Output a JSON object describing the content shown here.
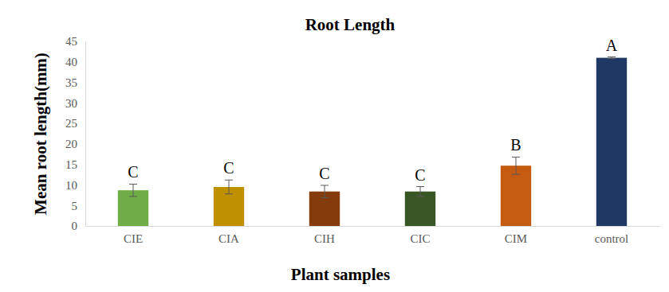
{
  "chart_data": {
    "type": "bar",
    "title": "Root Length",
    "x_label": "Plant samples",
    "y_label": "Mean root length(mm)",
    "categories": [
      "CIE",
      "CIA",
      "CIH",
      "CIC",
      "CIM",
      "control"
    ],
    "values": [
      8.7,
      9.5,
      8.4,
      8.4,
      14.7,
      41
    ],
    "errors": [
      1.5,
      1.7,
      1.5,
      1.2,
      2.1,
      0.2
    ],
    "annotations": [
      "C",
      "C",
      "C",
      "C",
      "B",
      "A"
    ],
    "colors": [
      "#70ad47",
      "#bf9000",
      "#843c0c",
      "#375623",
      "#c55a11",
      "#1f3864"
    ],
    "ylim": [
      0,
      45
    ],
    "yticks": [
      0,
      5,
      10,
      15,
      20,
      25,
      30,
      35,
      40,
      45
    ],
    "grid": false
  }
}
